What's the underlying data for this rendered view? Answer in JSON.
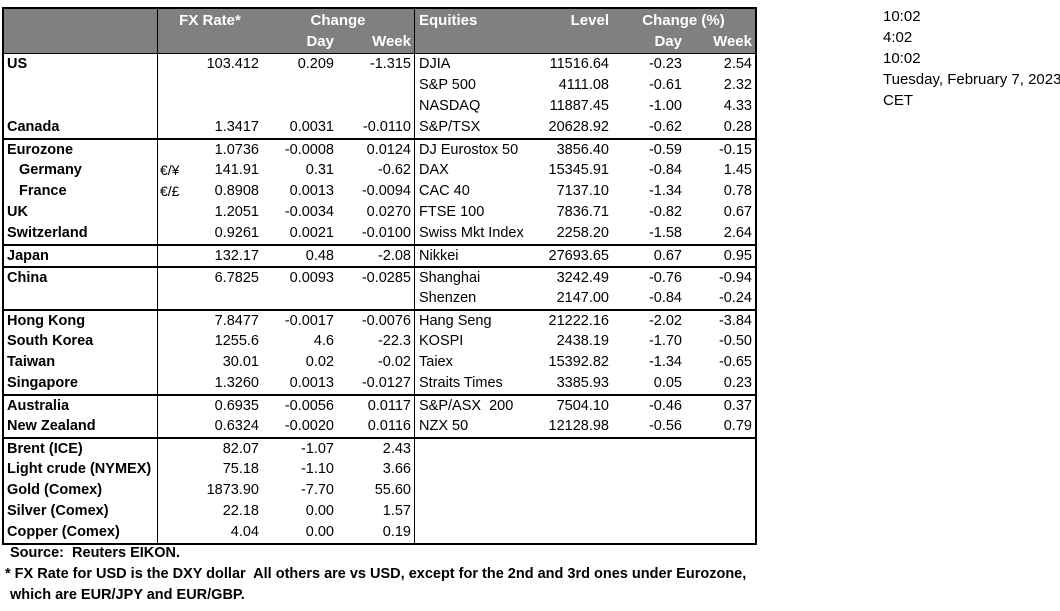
{
  "colors": {
    "header_bg": "#808080",
    "header_text": "#ffffff",
    "border": "#000000"
  },
  "header": {
    "fx": {
      "rate_label": "FX Rate*",
      "change_label": "Change",
      "day_label": "Day",
      "week_label": "Week"
    },
    "equities": {
      "name_label": "Equities",
      "level_label": "Level",
      "change_label": "Change (%)",
      "day_label": "Day",
      "week_label": "Week"
    }
  },
  "timestamps": {
    "lines": [
      "10:02",
      "4:02",
      "10:02",
      "Tuesday, February 7, 2023",
      "CET"
    ]
  },
  "rows": [
    {
      "country": "US",
      "pair": "",
      "rate": "103.412",
      "day": "0.209",
      "week": "-1.315",
      "equity": "DJIA",
      "level": "11516.64",
      "eq_day": "-0.23",
      "eq_week": "2.54",
      "section": false,
      "indent": false
    },
    {
      "country": "",
      "pair": "",
      "rate": "",
      "day": "",
      "week": "",
      "equity": "S&P 500",
      "level": "4111.08",
      "eq_day": "-0.61",
      "eq_week": "2.32",
      "section": false,
      "indent": false
    },
    {
      "country": "",
      "pair": "",
      "rate": "",
      "day": "",
      "week": "",
      "equity": "NASDAQ",
      "level": "11887.45",
      "eq_day": "-1.00",
      "eq_week": "4.33",
      "section": false,
      "indent": false
    },
    {
      "country": "Canada",
      "pair": "",
      "rate": "1.3417",
      "day": "0.0031",
      "week": "-0.0110",
      "equity": "S&P/TSX",
      "level": "20628.92",
      "eq_day": "-0.62",
      "eq_week": "0.28",
      "section": false,
      "indent": false
    },
    {
      "country": "Eurozone",
      "pair": "",
      "rate": "1.0736",
      "day": "-0.0008",
      "week": "0.0124",
      "equity": "DJ Eurostox 50",
      "level": "3856.40",
      "eq_day": "-0.59",
      "eq_week": "-0.15",
      "section": true,
      "indent": false
    },
    {
      "country": "Germany",
      "pair": "€/¥",
      "rate": "141.91",
      "day": "0.31",
      "week": "-0.62",
      "equity": "DAX",
      "level": "15345.91",
      "eq_day": "-0.84",
      "eq_week": "1.45",
      "section": false,
      "indent": true
    },
    {
      "country": "France",
      "pair": "€/£",
      "rate": "0.8908",
      "day": "0.0013",
      "week": "-0.0094",
      "equity": "CAC 40",
      "level": "7137.10",
      "eq_day": "-1.34",
      "eq_week": "0.78",
      "section": false,
      "indent": true
    },
    {
      "country": "UK",
      "pair": "",
      "rate": "1.2051",
      "day": "-0.0034",
      "week": "0.0270",
      "equity": "FTSE 100",
      "level": "7836.71",
      "eq_day": "-0.82",
      "eq_week": "0.67",
      "section": false,
      "indent": false
    },
    {
      "country": "Switzerland",
      "pair": "",
      "rate": "0.9261",
      "day": "0.0021",
      "week": "-0.0100",
      "equity": "Swiss Mkt Index",
      "level": "2258.20",
      "eq_day": "-1.58",
      "eq_week": "2.64",
      "section": false,
      "indent": false
    },
    {
      "country": "Japan",
      "pair": "",
      "rate": "132.17",
      "day": "0.48",
      "week": "-2.08",
      "equity": "Nikkei",
      "level": "27693.65",
      "eq_day": "0.67",
      "eq_week": "0.95",
      "section": true,
      "indent": false
    },
    {
      "country": "China",
      "pair": "",
      "rate": "6.7825",
      "day": "0.0093",
      "week": "-0.0285",
      "equity": "Shanghai",
      "level": "3242.49",
      "eq_day": "-0.76",
      "eq_week": "-0.94",
      "section": true,
      "indent": false
    },
    {
      "country": "",
      "pair": "",
      "rate": "",
      "day": "",
      "week": "",
      "equity": "Shenzen",
      "level": "2147.00",
      "eq_day": "-0.84",
      "eq_week": "-0.24",
      "section": false,
      "indent": false
    },
    {
      "country": "Hong Kong",
      "pair": "",
      "rate": "7.8477",
      "day": "-0.0017",
      "week": "-0.0076",
      "equity": "Hang Seng",
      "level": "21222.16",
      "eq_day": "-2.02",
      "eq_week": "-3.84",
      "section": true,
      "indent": false
    },
    {
      "country": "South Korea",
      "pair": "",
      "rate": "1255.6",
      "day": "4.6",
      "week": "-22.3",
      "equity": "KOSPI",
      "level": "2438.19",
      "eq_day": "-1.70",
      "eq_week": "-0.50",
      "section": false,
      "indent": false
    },
    {
      "country": "Taiwan",
      "pair": "",
      "rate": "30.01",
      "day": "0.02",
      "week": "-0.02",
      "equity": "Taiex",
      "level": "15392.82",
      "eq_day": "-1.34",
      "eq_week": "-0.65",
      "section": false,
      "indent": false
    },
    {
      "country": "Singapore",
      "pair": "",
      "rate": "1.3260",
      "day": "0.0013",
      "week": "-0.0127",
      "equity": "Straits Times",
      "level": "3385.93",
      "eq_day": "0.05",
      "eq_week": "0.23",
      "section": false,
      "indent": false
    },
    {
      "country": "Australia",
      "pair": "",
      "rate": "0.6935",
      "day": "-0.0056",
      "week": "0.0117",
      "equity": "S&P/ASX  200",
      "level": "7504.10",
      "eq_day": "-0.46",
      "eq_week": "0.37",
      "section": true,
      "indent": false
    },
    {
      "country": "New Zealand",
      "pair": "",
      "rate": "0.6324",
      "day": "-0.0020",
      "week": "0.0116",
      "equity": "NZX 50",
      "level": "12128.98",
      "eq_day": "-0.56",
      "eq_week": "0.79",
      "section": false,
      "indent": false
    },
    {
      "country": "Brent (ICE)",
      "pair": "",
      "rate": "82.07",
      "day": "-1.07",
      "week": "2.43",
      "equity": "",
      "level": "",
      "eq_day": "",
      "eq_week": "",
      "section": true,
      "indent": false
    },
    {
      "country": "Light crude (NYMEX)",
      "pair": "",
      "rate": "75.18",
      "day": "-1.10",
      "week": "3.66",
      "equity": "",
      "level": "",
      "eq_day": "",
      "eq_week": "",
      "section": false,
      "indent": false
    },
    {
      "country": "Gold (Comex)",
      "pair": "",
      "rate": "1873.90",
      "day": "-7.70",
      "week": "55.60",
      "equity": "",
      "level": "",
      "eq_day": "",
      "eq_week": "",
      "section": false,
      "indent": false
    },
    {
      "country": "Silver (Comex)",
      "pair": "",
      "rate": "22.18",
      "day": "0.00",
      "week": "1.57",
      "equity": "",
      "level": "",
      "eq_day": "",
      "eq_week": "",
      "section": false,
      "indent": false
    },
    {
      "country": "Copper (Comex)",
      "pair": "",
      "rate": "4.04",
      "day": "0.00",
      "week": "0.19",
      "equity": "",
      "level": "",
      "eq_day": "",
      "eq_week": "",
      "section": false,
      "indent": false
    }
  ],
  "footer": {
    "source": "Source:  Reuters EIKON.",
    "note_line1": "* FX Rate for USD is the DXY dollar  All others are vs USD, except for the 2nd and 3rd ones under Eurozone,",
    "note_line2": "which are EUR/JPY and EUR/GBP."
  }
}
